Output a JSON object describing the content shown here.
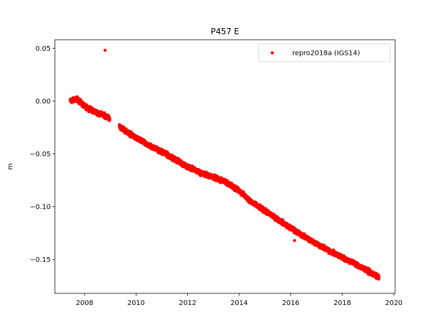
{
  "chart_data": {
    "type": "scatter",
    "title": "P457 E",
    "xlabel": "",
    "ylabel": "m",
    "xlim": [
      2006.85,
      2020.05
    ],
    "ylim": [
      -0.182,
      0.058
    ],
    "xticks": [
      2008,
      2010,
      2012,
      2014,
      2016,
      2018,
      2020
    ],
    "xtick_labels": [
      "2008",
      "2010",
      "2012",
      "2014",
      "2016",
      "2018",
      "2020"
    ],
    "yticks": [
      0.05,
      0.0,
      -0.05,
      -0.1,
      -0.15
    ],
    "ytick_labels": [
      "0.05",
      "0.00",
      "−0.05",
      "−0.10",
      "−0.15"
    ],
    "grid": false,
    "legend_position": "top-right",
    "series": [
      {
        "name": "repro2018a (IGS14)",
        "color": "#ff0000",
        "marker": "point",
        "trend": {
          "x": [
            2007.45,
            2007.7,
            2008.0,
            2008.4,
            2008.9,
            2009.4,
            2010.0,
            2010.5,
            2011.0,
            2011.5,
            2012.0,
            2012.5,
            2013.0,
            2013.5,
            2014.0,
            2014.5,
            2015.0,
            2015.5,
            2016.0,
            2016.5,
            2017.0,
            2017.5,
            2018.0,
            2018.5,
            2019.0,
            2019.42
          ],
          "y": [
            0.0,
            0.002,
            -0.005,
            -0.01,
            -0.015,
            -0.025,
            -0.035,
            -0.042,
            -0.048,
            -0.055,
            -0.062,
            -0.068,
            -0.072,
            -0.077,
            -0.085,
            -0.096,
            -0.104,
            -0.112,
            -0.12,
            -0.128,
            -0.135,
            -0.142,
            -0.148,
            -0.154,
            -0.161,
            -0.167
          ]
        },
        "gaps": [
          [
            2008.98,
            2009.35
          ]
        ],
        "outliers": [
          {
            "x": 2008.8,
            "y": 0.048
          },
          {
            "x": 2016.15,
            "y": -0.132
          }
        ]
      }
    ]
  }
}
